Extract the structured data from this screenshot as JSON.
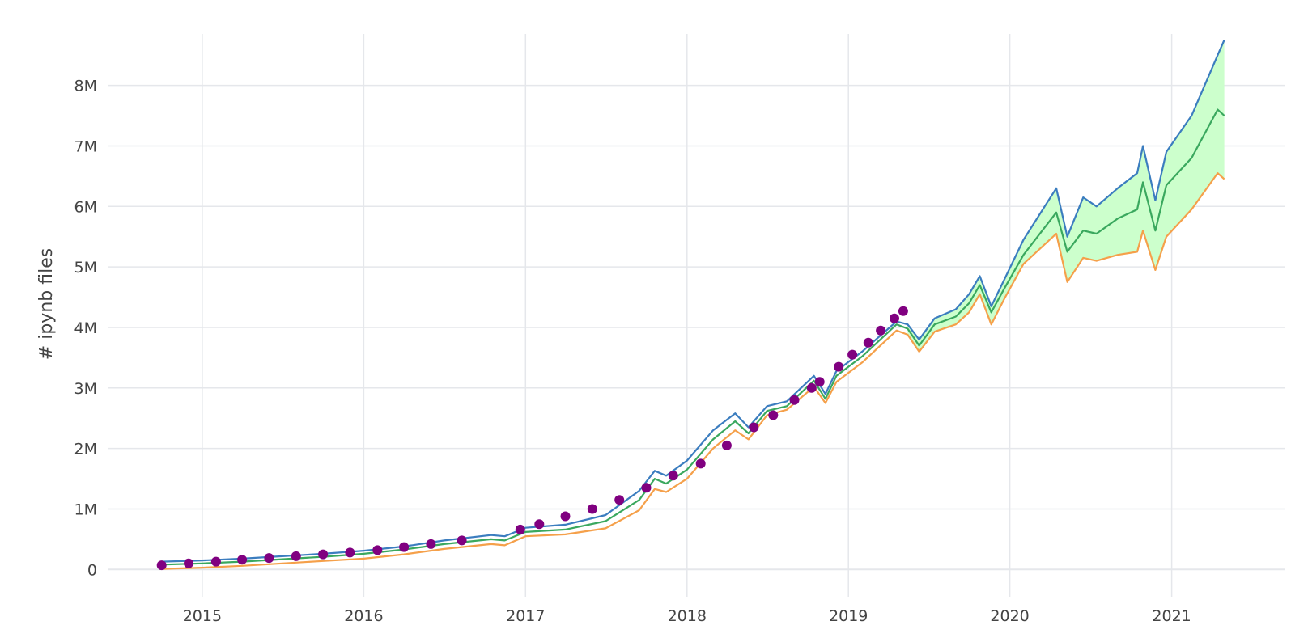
{
  "chart_data": {
    "type": "line",
    "title": "",
    "xlabel": "",
    "ylabel": "# ipynb files",
    "x_axis": {
      "type": "date",
      "range": [
        "2014-06-01",
        "2021-09-15"
      ],
      "ticks": [
        {
          "value": "2015-01-01",
          "label": "2015"
        },
        {
          "value": "2016-01-01",
          "label": "2016"
        },
        {
          "value": "2017-01-01",
          "label": "2017"
        },
        {
          "value": "2018-01-01",
          "label": "2018"
        },
        {
          "value": "2019-01-01",
          "label": "2019"
        },
        {
          "value": "2020-01-01",
          "label": "2020"
        },
        {
          "value": "2021-01-01",
          "label": "2021"
        }
      ]
    },
    "y_axis": {
      "range": [
        -450000,
        8850000
      ],
      "ticks": [
        {
          "value": 0,
          "label": "0"
        },
        {
          "value": 1000000,
          "label": "1M"
        },
        {
          "value": 2000000,
          "label": "2M"
        },
        {
          "value": 3000000,
          "label": "3M"
        },
        {
          "value": 4000000,
          "label": "4M"
        },
        {
          "value": 5000000,
          "label": "5M"
        },
        {
          "value": 6000000,
          "label": "6M"
        },
        {
          "value": 7000000,
          "label": "7M"
        },
        {
          "value": 8000000,
          "label": "8M"
        }
      ]
    },
    "grid": true,
    "legend": "none",
    "fill_between": {
      "upper": "upper",
      "lower": "lower",
      "color": "#ccffcc",
      "start": "2019-05-15"
    },
    "series": [
      {
        "key": "upper",
        "mode": "line",
        "color": "#3b7dbf",
        "x": [
          "2014-10-01",
          "2015-01-01",
          "2015-04-01",
          "2015-07-01",
          "2015-10-01",
          "2016-01-01",
          "2016-04-01",
          "2016-07-01",
          "2016-10-15",
          "2016-11-15",
          "2017-01-01",
          "2017-04-01",
          "2017-07-01",
          "2017-09-15",
          "2017-10-20",
          "2017-11-15",
          "2018-01-01",
          "2018-03-01",
          "2018-04-20",
          "2018-05-20",
          "2018-07-01",
          "2018-08-15",
          "2018-10-15",
          "2018-11-10",
          "2018-12-05",
          "2019-02-01",
          "2019-04-20",
          "2019-05-15",
          "2019-06-10",
          "2019-07-15",
          "2019-09-01",
          "2019-10-01",
          "2019-10-25",
          "2019-11-20",
          "2019-12-20",
          "2020-02-01",
          "2020-04-15",
          "2020-05-10",
          "2020-06-15",
          "2020-07-15",
          "2020-09-01",
          "2020-10-15",
          "2020-10-28",
          "2020-11-25",
          "2020-12-20",
          "2021-02-15",
          "2021-04-15",
          "2021-04-30"
        ],
        "y": [
          130000,
          150000,
          180000,
          220000,
          260000,
          310000,
          380000,
          480000,
          570000,
          550000,
          690000,
          740000,
          900000,
          1300000,
          1630000,
          1550000,
          1800000,
          2300000,
          2580000,
          2350000,
          2700000,
          2780000,
          3200000,
          2900000,
          3280000,
          3600000,
          4100000,
          4050000,
          3800000,
          4150000,
          4300000,
          4550000,
          4850000,
          4350000,
          4800000,
          5450000,
          6300000,
          5500000,
          6150000,
          6000000,
          6300000,
          6550000,
          7000000,
          6100000,
          6900000,
          7500000,
          8500000,
          8750000
        ]
      },
      {
        "key": "mid",
        "mode": "line",
        "color": "#3aa85e",
        "x": [
          "2014-10-01",
          "2015-01-01",
          "2015-04-01",
          "2015-07-01",
          "2015-10-01",
          "2016-01-01",
          "2016-04-01",
          "2016-07-01",
          "2016-10-15",
          "2016-11-15",
          "2017-01-01",
          "2017-04-01",
          "2017-07-01",
          "2017-09-15",
          "2017-10-20",
          "2017-11-15",
          "2018-01-01",
          "2018-03-01",
          "2018-04-20",
          "2018-05-20",
          "2018-07-01",
          "2018-08-15",
          "2018-10-15",
          "2018-11-10",
          "2018-12-05",
          "2019-02-01",
          "2019-04-20",
          "2019-05-15",
          "2019-06-10",
          "2019-07-15",
          "2019-09-01",
          "2019-10-01",
          "2019-10-25",
          "2019-11-20",
          "2019-12-20",
          "2020-02-01",
          "2020-04-15",
          "2020-05-10",
          "2020-06-15",
          "2020-07-15",
          "2020-09-01",
          "2020-10-15",
          "2020-10-28",
          "2020-11-25",
          "2020-12-20",
          "2021-02-15",
          "2021-04-15",
          "2021-04-30"
        ],
        "y": [
          80000,
          100000,
          130000,
          170000,
          210000,
          260000,
          330000,
          420000,
          500000,
          480000,
          620000,
          660000,
          800000,
          1150000,
          1500000,
          1420000,
          1650000,
          2150000,
          2450000,
          2250000,
          2620000,
          2700000,
          3120000,
          2820000,
          3200000,
          3520000,
          4050000,
          3980000,
          3700000,
          4050000,
          4180000,
          4400000,
          4700000,
          4250000,
          4650000,
          5200000,
          5900000,
          5250000,
          5600000,
          5550000,
          5800000,
          5950000,
          6400000,
          5600000,
          6350000,
          6800000,
          7600000,
          7500000
        ]
      },
      {
        "key": "lower",
        "mode": "line",
        "color": "#f5a04a",
        "x": [
          "2014-10-01",
          "2015-01-01",
          "2015-04-01",
          "2015-07-01",
          "2015-10-01",
          "2016-01-01",
          "2016-04-01",
          "2016-07-01",
          "2016-10-15",
          "2016-11-15",
          "2017-01-01",
          "2017-04-01",
          "2017-07-01",
          "2017-09-15",
          "2017-10-20",
          "2017-11-15",
          "2018-01-01",
          "2018-03-01",
          "2018-04-20",
          "2018-05-20",
          "2018-07-01",
          "2018-08-15",
          "2018-10-15",
          "2018-11-10",
          "2018-12-05",
          "2019-02-01",
          "2019-04-20",
          "2019-05-15",
          "2019-06-10",
          "2019-07-15",
          "2019-09-01",
          "2019-10-01",
          "2019-10-25",
          "2019-11-20",
          "2019-12-20",
          "2020-02-01",
          "2020-04-15",
          "2020-05-10",
          "2020-06-15",
          "2020-07-15",
          "2020-09-01",
          "2020-10-15",
          "2020-10-28",
          "2020-11-25",
          "2020-12-20",
          "2021-02-15",
          "2021-04-15",
          "2021-04-30"
        ],
        "y": [
          10000,
          30000,
          60000,
          100000,
          140000,
          180000,
          250000,
          340000,
          420000,
          400000,
          550000,
          580000,
          680000,
          980000,
          1330000,
          1280000,
          1500000,
          2000000,
          2300000,
          2150000,
          2550000,
          2640000,
          3020000,
          2750000,
          3100000,
          3420000,
          3950000,
          3880000,
          3600000,
          3930000,
          4050000,
          4250000,
          4550000,
          4050000,
          4480000,
          5050000,
          5550000,
          4750000,
          5150000,
          5100000,
          5200000,
          5250000,
          5600000,
          4950000,
          5500000,
          5950000,
          6550000,
          6450000
        ]
      },
      {
        "key": "observed",
        "mode": "markers",
        "color": "#800080",
        "x": [
          "2014-10-01",
          "2014-12-01",
          "2015-02-01",
          "2015-04-01",
          "2015-06-01",
          "2015-08-01",
          "2015-10-01",
          "2015-12-01",
          "2016-02-01",
          "2016-04-01",
          "2016-06-01",
          "2016-08-10",
          "2016-12-20",
          "2017-02-01",
          "2017-04-01",
          "2017-06-01",
          "2017-08-01",
          "2017-10-01",
          "2017-12-01",
          "2018-02-01",
          "2018-04-01",
          "2018-06-01",
          "2018-07-15",
          "2018-09-01",
          "2018-10-10",
          "2018-10-28",
          "2018-12-10",
          "2019-01-10",
          "2019-02-15",
          "2019-03-15",
          "2019-04-15",
          "2019-05-05"
        ],
        "y": [
          70000,
          100000,
          130000,
          160000,
          190000,
          220000,
          250000,
          280000,
          320000,
          370000,
          420000,
          480000,
          660000,
          750000,
          880000,
          1000000,
          1150000,
          1350000,
          1550000,
          1750000,
          2050000,
          2350000,
          2550000,
          2800000,
          3000000,
          3100000,
          3350000,
          3550000,
          3750000,
          3950000,
          4150000,
          4270000
        ]
      }
    ]
  }
}
